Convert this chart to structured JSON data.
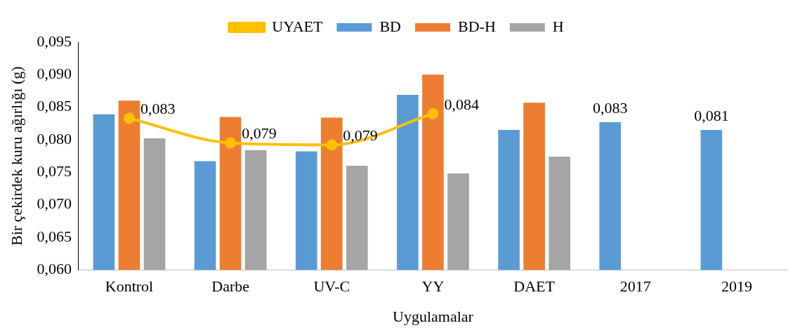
{
  "chart_data": {
    "type": "bar",
    "xlabel": "Uygulamalar",
    "ylabel": "Bir çekirdek kuru ağırlığı (g)",
    "categories": [
      "Kontrol",
      "Darbe",
      "UV-C",
      "YY",
      "DAET",
      "2017",
      "2019"
    ],
    "series": [
      {
        "name": "BD",
        "color": "#5b9bd5",
        "values": [
          0.0839,
          0.0767,
          0.0782,
          0.0869,
          0.0815,
          0.0827,
          0.0815
        ],
        "value_labels": [
          null,
          null,
          null,
          null,
          null,
          "0,083",
          "0,081"
        ]
      },
      {
        "name": "BD-H",
        "color": "#ed7d31",
        "values": [
          0.086,
          0.0835,
          0.0834,
          0.09,
          0.0857,
          null,
          null
        ]
      },
      {
        "name": "H",
        "color": "#a5a5a5",
        "values": [
          0.0802,
          0.0784,
          0.076,
          0.0748,
          0.0774,
          null,
          null
        ]
      },
      {
        "name": "UYAET",
        "type": "line",
        "color": "#ffc000",
        "marker": "circle",
        "values": [
          0.0833,
          0.0795,
          0.0792,
          0.084,
          null,
          null,
          null
        ],
        "value_labels": [
          "0,083",
          "0,079",
          "0,079",
          "0,084",
          null,
          null,
          null
        ]
      }
    ],
    "ylim": [
      0.06,
      0.095
    ],
    "yticks": [
      {
        "value": 0.06,
        "label": "0,060"
      },
      {
        "value": 0.065,
        "label": "0,065"
      },
      {
        "value": 0.07,
        "label": "0,070"
      },
      {
        "value": 0.075,
        "label": "0,075"
      },
      {
        "value": 0.08,
        "label": "0,080"
      },
      {
        "value": 0.085,
        "label": "0,085"
      },
      {
        "value": 0.09,
        "label": "0,090"
      },
      {
        "value": 0.095,
        "label": "0,095"
      }
    ],
    "grid": false,
    "legend": "top"
  }
}
